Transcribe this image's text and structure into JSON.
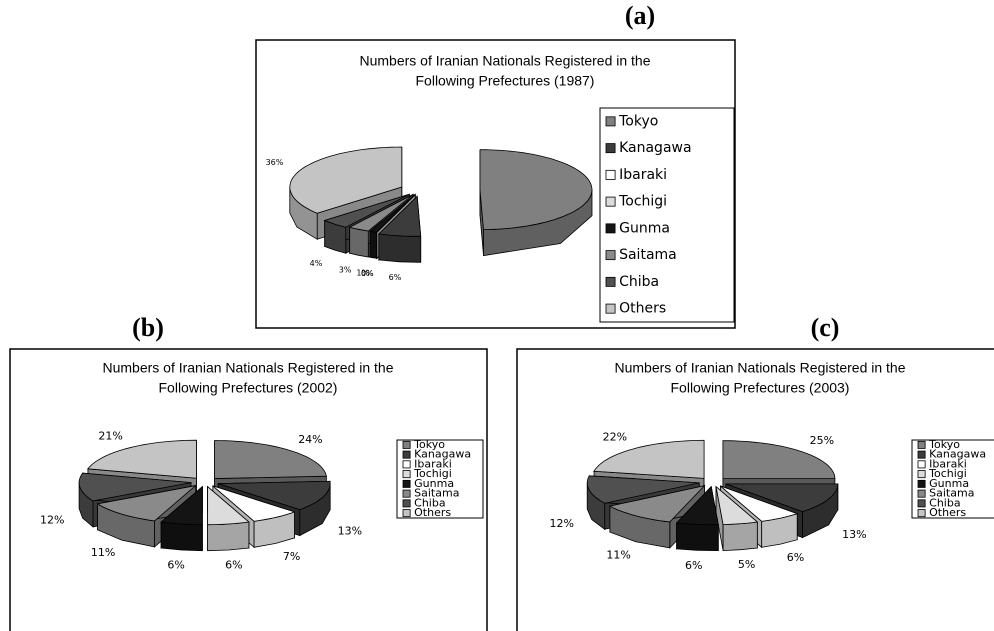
{
  "chart_data": [
    {
      "type": "pie",
      "panel_label": "(a)",
      "title": [
        "Numbers of Iranian Nationals Registered in the",
        "Following Prefectures (1987)"
      ],
      "categories": [
        "Tokyo",
        "Kanagawa",
        "Ibaraki",
        "Tochigi",
        "Gunma",
        "Saitama",
        "Chiba",
        "Others"
      ],
      "values": [
        49,
        6,
        0,
        0,
        1,
        3,
        4,
        36
      ],
      "value_labels": [
        "49%",
        "6%",
        "0%",
        "0%",
        "1%",
        "3%",
        "4%",
        "36%"
      ],
      "colors": [
        "#808080",
        "#3c3c3c",
        "#ffffff",
        "#dcdcdc",
        "#141414",
        "#8a8a8a",
        "#505050",
        "#c4c4c4"
      ],
      "legend": "right"
    },
    {
      "type": "pie",
      "panel_label": "(b)",
      "title": [
        "Numbers of Iranian Nationals Registered in the",
        "Following Prefectures (2002)"
      ],
      "categories": [
        "Tokyo",
        "Kanagawa",
        "Ibaraki",
        "Tochigi",
        "Gunma",
        "Saitama",
        "Chiba",
        "Others"
      ],
      "values": [
        24,
        13,
        7,
        6,
        6,
        11,
        12,
        21
      ],
      "value_labels": [
        "24%",
        "13%",
        "7%",
        "6%",
        "6%",
        "11%",
        "12%",
        "21%"
      ],
      "colors": [
        "#808080",
        "#3c3c3c",
        "#ffffff",
        "#dcdcdc",
        "#141414",
        "#8a8a8a",
        "#505050",
        "#c4c4c4"
      ],
      "legend": "right"
    },
    {
      "type": "pie",
      "panel_label": "(c)",
      "title": [
        "Numbers of Iranian Nationals Registered in the",
        "Following Prefectures (2003)"
      ],
      "categories": [
        "Tokyo",
        "Kanagawa",
        "Ibaraki",
        "Tochigi",
        "Gunma",
        "Saitama",
        "Chiba",
        "Others"
      ],
      "values": [
        25,
        13,
        6,
        5,
        6,
        11,
        12,
        22
      ],
      "value_labels": [
        "25%",
        "13%",
        "6%",
        "5%",
        "6%",
        "11%",
        "12%",
        "22%"
      ],
      "colors": [
        "#808080",
        "#3c3c3c",
        "#ffffff",
        "#dcdcdc",
        "#141414",
        "#8a8a8a",
        "#505050",
        "#c4c4c4"
      ],
      "legend": "right"
    }
  ]
}
